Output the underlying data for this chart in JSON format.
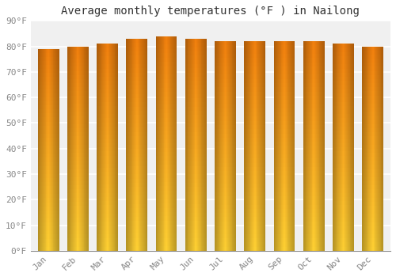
{
  "title": "Average monthly temperatures (°F ) in Nailong",
  "months": [
    "Jan",
    "Feb",
    "Mar",
    "Apr",
    "May",
    "Jun",
    "Jul",
    "Aug",
    "Sep",
    "Oct",
    "Nov",
    "Dec"
  ],
  "values": [
    79,
    80,
    81,
    83,
    84,
    83,
    82,
    82,
    82,
    82,
    81,
    80
  ],
  "ylim": [
    0,
    90
  ],
  "yticks": [
    0,
    10,
    20,
    30,
    40,
    50,
    60,
    70,
    80,
    90
  ],
  "ytick_labels": [
    "0°F",
    "10°F",
    "20°F",
    "30°F",
    "40°F",
    "50°F",
    "60°F",
    "70°F",
    "80°F",
    "90°F"
  ],
  "bar_color_left": "#E8820A",
  "bar_color_center": "#FFCC33",
  "bar_color_right": "#E8820A",
  "bar_color_bottom": "#FFB830",
  "bar_color_top": "#F08010",
  "background_color": "#ffffff",
  "plot_bg_color": "#f0f0f0",
  "grid_color": "#ffffff",
  "title_fontsize": 10,
  "tick_fontsize": 8,
  "bar_width": 0.72
}
